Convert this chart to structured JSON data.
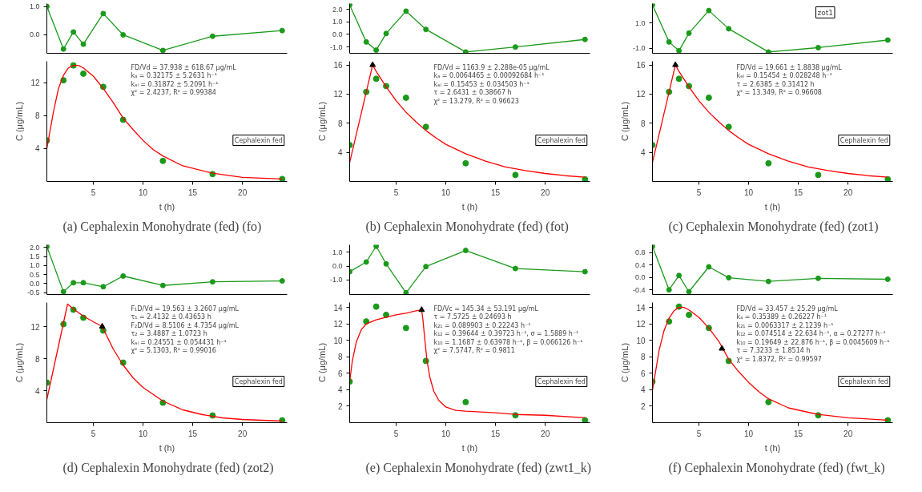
{
  "chart_data": [
    {
      "type": "line",
      "marker": "circle",
      "tick_labels": "y",
      "x": [
        0.33,
        2,
        3,
        4,
        6,
        8,
        12,
        17,
        24
      ],
      "xlim": [
        0.33,
        24.5
      ],
      "ylim": [
        -0.65,
        1.1
      ],
      "yticks": [
        {
          "value": 0,
          "label": "0.0"
        },
        {
          "value": 1,
          "label": "1.0"
        }
      ],
      "series": [
        {
          "color": "#1a9a1a",
          "values": [
            1.0,
            -0.5,
            0.1,
            -0.33,
            0.75,
            0.0,
            -0.55,
            -0.05,
            0.15
          ]
        }
      ]
    },
    {
      "type": "scatter",
      "title": "(a) Cephalexin Monohydrate (fed) (fo)",
      "xlabel": "t (h)",
      "ylabel": "C (μg/mL)",
      "x": [
        0.33,
        2,
        3,
        4,
        6,
        8,
        12,
        17,
        24
      ],
      "xlim": [
        0.33,
        24.5
      ],
      "ylim": [
        0,
        14.6
      ],
      "xticks": [
        5,
        10,
        15,
        20
      ],
      "yticks": [
        4,
        8,
        12
      ],
      "annotations": [
        "FD/Vd = 37.938 ± 618.67 μg/mL",
        "kₐ = 0.32175 ± 5.2631 h⁻¹",
        "kₑₗ = 0.31872 ± 5.2091 h⁻¹",
        "χ² = 2.4237,  R² = 0.99384",
        "Cephalexin fed"
      ],
      "series": [
        {
          "color": "#1a9a1a",
          "marker": "circle",
          "values": [
            5.0,
            12.3,
            14.1,
            13.1,
            11.5,
            7.5,
            2.5,
            0.9,
            0.3
          ]
        },
        {
          "type": "line",
          "color": "#ff0000",
          "marker": "none",
          "x": [
            0.33,
            1,
            1.5,
            2,
            2.5,
            3,
            3.5,
            4,
            5,
            6,
            7,
            8,
            9,
            10,
            11,
            12,
            14,
            17,
            20,
            24
          ],
          "values": [
            4.0,
            8.5,
            11.3,
            12.9,
            13.8,
            14.1,
            14.1,
            13.8,
            12.8,
            11.3,
            9.6,
            7.7,
            6.3,
            5.0,
            3.9,
            3.1,
            1.9,
            1.0,
            0.5,
            0.3
          ]
        }
      ]
    },
    {
      "type": "line",
      "marker": "circle",
      "tick_labels": "y",
      "x": [
        0.33,
        2,
        3,
        4,
        6,
        8,
        12,
        17,
        24
      ],
      "xlim": [
        0.33,
        24.5
      ],
      "ylim": [
        -1.5,
        2.45
      ],
      "yticks": [
        {
          "value": -1,
          "label": "-1.0"
        },
        {
          "value": 0,
          "label": "0.0"
        },
        {
          "value": 1,
          "label": "1.0"
        },
        {
          "value": 2,
          "label": "2.0"
        }
      ],
      "series": [
        {
          "color": "#1a9a1a",
          "values": [
            2.35,
            -0.6,
            -1.25,
            0.07,
            1.85,
            0.4,
            -1.4,
            -1.0,
            -0.4
          ]
        }
      ]
    },
    {
      "type": "scatter",
      "title": "(b) Cephalexin Monohydrate (fed) (fot)",
      "xlabel": "t (h)",
      "ylabel": "C (μg/mL)",
      "x": [
        0.33,
        2,
        3,
        4,
        6,
        8,
        12,
        17,
        24
      ],
      "xlim": [
        0.33,
        24.5
      ],
      "ylim": [
        0,
        16.5
      ],
      "xticks": [
        5,
        10,
        15,
        20
      ],
      "yticks": [
        4,
        8,
        12,
        16
      ],
      "annotations": [
        "FD/Vd = 1163.9 ± 2.288e-05 μg/mL",
        "kₐ = 0.0064465 ± 0.00092684 h⁻¹",
        "kₑₗ = 0.15453 ± 0.034503 h⁻¹",
        "τ = 2.6431 ± 0.38667 h",
        "χ² = 13.279,  R² = 0.96623",
        "Cephalexin fed"
      ],
      "series": [
        {
          "color": "#1a9a1a",
          "marker": "circle",
          "values": [
            5.0,
            12.3,
            14.1,
            13.1,
            11.5,
            7.5,
            2.5,
            0.9,
            0.3
          ]
        },
        {
          "type": "line",
          "color": "#ff0000",
          "marker": "none",
          "x": [
            0.33,
            2.64,
            3,
            4,
            5,
            6,
            7,
            8,
            9,
            10,
            12,
            14,
            16,
            18,
            20,
            22,
            24
          ],
          "values": [
            2.6,
            16.0,
            15.1,
            13.0,
            11.1,
            9.5,
            8.2,
            7.0,
            6.0,
            5.1,
            3.8,
            2.8,
            2.0,
            1.5,
            1.1,
            0.8,
            0.6
          ]
        },
        {
          "type": "scatter",
          "color": "#000000",
          "marker": "triangle",
          "x": [
            2.64
          ],
          "values": [
            16.0
          ]
        }
      ]
    },
    {
      "type": "line",
      "marker": "circle",
      "tick_labels": "y",
      "x": [
        0.33,
        2,
        3,
        4,
        6,
        8,
        12,
        17,
        24
      ],
      "xlim": [
        0.33,
        24.5
      ],
      "ylim": [
        -1.4,
        2.55
      ],
      "yticks": [
        {
          "value": -1,
          "label": "-1.0"
        },
        {
          "value": 1,
          "label": "1.0"
        }
      ],
      "annotations": [
        "zot1"
      ],
      "series": [
        {
          "color": "#1a9a1a",
          "values": [
            2.45,
            -0.5,
            -1.2,
            0.2,
            2.0,
            0.55,
            -1.3,
            -0.95,
            -0.35
          ]
        }
      ]
    },
    {
      "type": "scatter",
      "title": "(c) Cephalexin Monohydrate (fed) (zot1)",
      "xlabel": "t (h)",
      "ylabel": "C (μg/mL)",
      "x": [
        0.33,
        2,
        3,
        4,
        6,
        8,
        12,
        17,
        24
      ],
      "xlim": [
        0.33,
        24.5
      ],
      "ylim": [
        0,
        16.5
      ],
      "xticks": [
        5,
        10,
        15,
        20
      ],
      "yticks": [
        4,
        8,
        12,
        16
      ],
      "annotations": [
        "FD/Vd = 19.661 ± 1.8838 μg/mL",
        "kₑₗ = 0.15454 ± 0.028248 h⁻¹",
        "τ = 2.6385 ± 0.31412 h",
        "χ² = 13.349,  R² = 0.96608",
        "Cephalexin fed"
      ],
      "series": [
        {
          "color": "#1a9a1a",
          "marker": "circle",
          "values": [
            5.0,
            12.3,
            14.1,
            13.1,
            11.5,
            7.5,
            2.5,
            0.9,
            0.3
          ]
        },
        {
          "type": "line",
          "color": "#ff0000",
          "marker": "none",
          "x": [
            0.33,
            2.64,
            3,
            4,
            5,
            6,
            7,
            8,
            9,
            10,
            12,
            14,
            16,
            18,
            20,
            22,
            24
          ],
          "values": [
            2.6,
            16.0,
            15.1,
            13.0,
            11.1,
            9.5,
            8.2,
            7.0,
            6.0,
            5.1,
            3.8,
            2.8,
            2.0,
            1.5,
            1.1,
            0.8,
            0.6
          ]
        },
        {
          "type": "scatter",
          "color": "#000000",
          "marker": "triangle",
          "x": [
            2.64
          ],
          "values": [
            16.0
          ]
        }
      ]
    },
    {
      "type": "line",
      "marker": "circle",
      "tick_labels": "y",
      "x": [
        0.33,
        2,
        3,
        4,
        6,
        8,
        12,
        17,
        24
      ],
      "xlim": [
        0.33,
        24.5
      ],
      "ylim": [
        -0.6,
        2.15
      ],
      "yticks": [
        {
          "value": -0.5,
          "label": "-0.5"
        },
        {
          "value": 0,
          "label": "0.0"
        },
        {
          "value": 0.5,
          "label": "0.5"
        },
        {
          "value": 1,
          "label": "1.0"
        },
        {
          "value": 1.5,
          "label": "1.5"
        },
        {
          "value": 2,
          "label": "2.0"
        }
      ],
      "series": [
        {
          "color": "#1a9a1a",
          "values": [
            2.05,
            -0.45,
            0.05,
            0.05,
            -0.17,
            0.42,
            -0.1,
            0.1,
            0.15
          ]
        }
      ]
    },
    {
      "type": "scatter",
      "title": "(d) Cephalexin Monohydrate (fed) (zot2)",
      "xlabel": "t (h)",
      "ylabel": "C (μg/mL)",
      "x": [
        0.33,
        2,
        3,
        4,
        6,
        8,
        12,
        17,
        24
      ],
      "xlim": [
        0.33,
        24.5
      ],
      "ylim": [
        0,
        15
      ],
      "xticks": [
        5,
        10,
        15,
        20
      ],
      "yticks": [
        4,
        8,
        12
      ],
      "annotations": [
        "F₁D/Vd = 19.563 ± 3.2607 μg/mL",
        "τ₁ = 2.4132 ± 0.43653 h",
        "F₂D/Vd = 8.5106 ± 4.7354 μg/mL",
        "τ₂ = 3.4887 ± 1.0723 h",
        "kₑₗ = 0.24551 ± 0.054431 h⁻¹",
        "χ² = 5.1303,  R² = 0.99016",
        "Cephalexin fed"
      ],
      "series": [
        {
          "color": "#1a9a1a",
          "marker": "circle",
          "values": [
            5.0,
            12.3,
            14.1,
            13.1,
            11.5,
            7.5,
            2.5,
            0.9,
            0.3
          ]
        },
        {
          "type": "line",
          "color": "#ff0000",
          "marker": "none",
          "x": [
            0.33,
            2.41,
            3,
            4,
            5,
            5.9,
            7,
            8,
            9,
            10,
            12,
            14,
            16,
            18,
            20,
            24
          ],
          "values": [
            2.9,
            14.8,
            14.2,
            13.3,
            12.6,
            12.0,
            9.2,
            7.2,
            5.6,
            4.4,
            2.7,
            1.6,
            1.0,
            0.6,
            0.4,
            0.2
          ]
        },
        {
          "type": "scatter",
          "color": "#000000",
          "marker": "triangle",
          "x": [
            5.9
          ],
          "values": [
            12.0
          ]
        }
      ]
    },
    {
      "type": "line",
      "marker": "circle",
      "tick_labels": "y",
      "x": [
        0.33,
        2,
        3,
        4,
        6,
        8,
        12,
        17,
        24
      ],
      "xlim": [
        0.33,
        24.5
      ],
      "ylim": [
        -2.05,
        1.55
      ],
      "yticks": [
        {
          "value": -1,
          "label": "-1.0"
        },
        {
          "value": 0,
          "label": "0.0"
        },
        {
          "value": 1,
          "label": "1.0"
        }
      ],
      "series": [
        {
          "color": "#1a9a1a",
          "values": [
            -0.4,
            0.3,
            1.45,
            0.17,
            -1.93,
            -0.03,
            1.14,
            -0.17,
            -0.4
          ]
        }
      ]
    },
    {
      "type": "scatter",
      "title": "(e) Cephalexin Monohydrate (fed) (zwt1_k)",
      "xlabel": "t (h)",
      "ylabel": "C (μg/mL)",
      "x": [
        0.33,
        2,
        3,
        4,
        6,
        8,
        12,
        17,
        24
      ],
      "xlim": [
        0.33,
        24.5
      ],
      "ylim": [
        0,
        14.6
      ],
      "xticks": [
        5,
        10,
        15,
        20
      ],
      "yticks": [
        2,
        4,
        6,
        8,
        10,
        12,
        14
      ],
      "annotations": [
        "FD/Vc = 145.34 ± 53.191 μg/mL",
        "τ = 7.5725 ± 0.24693 h",
        "k₂₁ = 0.089903 ± 0.22243 h⁻¹",
        "k₁₂ = 0.39644 ± 0.39723 h⁻¹, σ = 1.5889 h⁻¹",
        "k₁₀ = 1.1687 ± 0.63978 h⁻¹, β = 0.066126 h⁻¹",
        "χ² = 7.5747,  R² = 0.9811",
        "Cephalexin fed"
      ],
      "series": [
        {
          "color": "#1a9a1a",
          "marker": "circle",
          "values": [
            5.0,
            12.3,
            14.1,
            13.1,
            11.5,
            7.5,
            2.5,
            0.9,
            0.3
          ]
        },
        {
          "type": "line",
          "color": "#ff0000",
          "marker": "none",
          "x": [
            0.33,
            0.6,
            1,
            1.5,
            2,
            3,
            4,
            5,
            6,
            7,
            7.57,
            7.7,
            7.9,
            8.1,
            8.4,
            8.8,
            9.3,
            10,
            11,
            12,
            15,
            17,
            20,
            24
          ],
          "values": [
            5.0,
            7.5,
            9.8,
            11.3,
            12.0,
            12.5,
            12.8,
            13.1,
            13.3,
            13.6,
            13.7,
            12.5,
            10.0,
            7.6,
            5.5,
            3.8,
            2.7,
            1.9,
            1.5,
            1.4,
            1.2,
            1.0,
            0.9,
            0.6
          ]
        },
        {
          "type": "scatter",
          "color": "#000000",
          "marker": "triangle",
          "x": [
            7.57
          ],
          "values": [
            13.7
          ]
        }
      ]
    },
    {
      "type": "line",
      "marker": "circle",
      "tick_labels": "y",
      "x": [
        0.33,
        2,
        3,
        4,
        6,
        8,
        12,
        17,
        24
      ],
      "xlim": [
        0.33,
        24.5
      ],
      "ylim": [
        -0.55,
        1.05
      ],
      "yticks": [
        {
          "value": -0.4,
          "label": "-0.4"
        },
        {
          "value": 0,
          "label": "0.0"
        },
        {
          "value": 0.4,
          "label": "0.4"
        },
        {
          "value": 0.8,
          "label": "0.8"
        }
      ],
      "series": [
        {
          "color": "#1a9a1a",
          "values": [
            1.0,
            -0.4,
            0.06,
            -0.46,
            0.34,
            -0.01,
            -0.13,
            -0.03,
            -0.06
          ]
        }
      ]
    },
    {
      "type": "scatter",
      "title": "(f) Cephalexin Monohydrate (fed) (fwt_k)",
      "xlabel": "t (h)",
      "ylabel": "C (μg/mL)",
      "x": [
        0.33,
        2,
        3,
        4,
        6,
        8,
        12,
        17,
        24
      ],
      "xlim": [
        0.33,
        24.5
      ],
      "ylim": [
        0,
        14.6
      ],
      "xticks": [
        5,
        10,
        15,
        20
      ],
      "yticks": [
        2,
        4,
        6,
        8,
        10,
        12,
        14
      ],
      "annotations": [
        "FD/Vd = 33.457 ± 25.29 μg/mL",
        "kₐ = 0.35389 ± 0.26227 h⁻¹",
        "k₂₁ = 0.0063317 ± 2.1239 h⁻¹",
        "k₁₂ = 0.074514 ± 22.634 h⁻¹, α = 0.27277 h⁻¹",
        "k₁₀ = 0.19649 ± 22.876 h⁻¹, β = 0.0045609 h⁻¹",
        "τ = 7.3233 ± 1.8514 h",
        "χ² = 1.8372,  R² = 0.99597",
        "Cephalexin fed"
      ],
      "series": [
        {
          "color": "#1a9a1a",
          "marker": "circle",
          "values": [
            5.0,
            12.3,
            14.1,
            13.1,
            11.5,
            7.5,
            2.5,
            0.9,
            0.3
          ]
        },
        {
          "type": "line",
          "color": "#ff0000",
          "marker": "none",
          "x": [
            0.33,
            1,
            1.5,
            2,
            2.5,
            3,
            3.5,
            4,
            5,
            6,
            7,
            8,
            9,
            10,
            11,
            12,
            14,
            17,
            20,
            24
          ],
          "values": [
            3.9,
            8.8,
            11.2,
            12.7,
            13.6,
            14.0,
            14.0,
            13.7,
            12.8,
            11.5,
            9.9,
            7.7,
            6.2,
            4.9,
            3.8,
            2.9,
            1.8,
            1.0,
            0.6,
            0.3
          ]
        },
        {
          "type": "scatter",
          "color": "#000000",
          "marker": "triangle",
          "x": [
            7.32
          ],
          "values": [
            9.0
          ]
        }
      ]
    }
  ]
}
